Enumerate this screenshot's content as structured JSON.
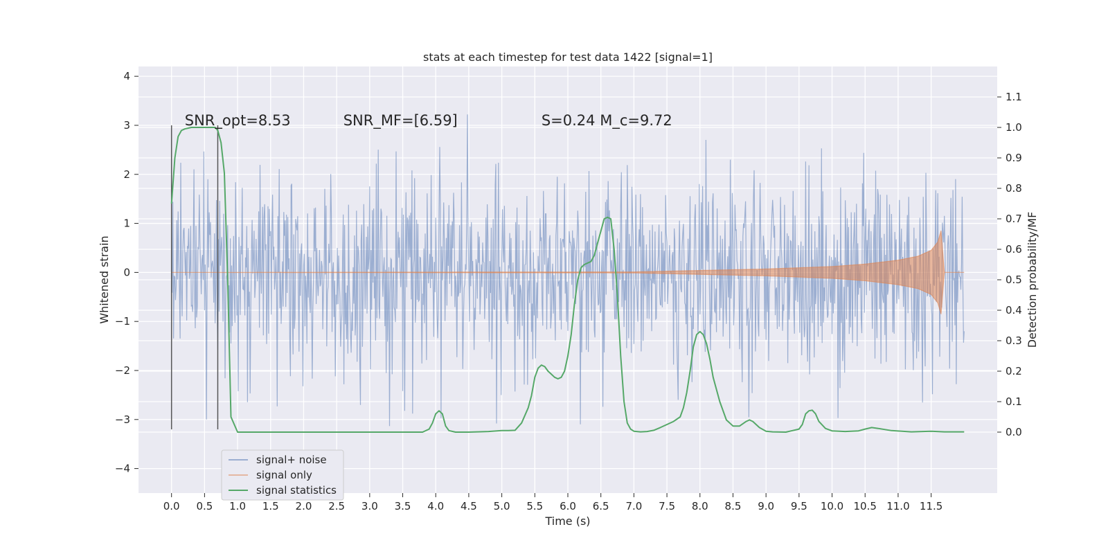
{
  "chart_data": {
    "type": "line",
    "title": "stats at each timestep for test data 1422 [signal=1]",
    "xlabel": "Time (s)",
    "ylabel_left": "Whitened strain",
    "ylabel_right": "Detection probability/MF",
    "xlim": [
      -0.5,
      12.5
    ],
    "ylim_left": [
      -4.5,
      4.2
    ],
    "ylim_right": [
      -0.2,
      1.2
    ],
    "xticks": [
      0.0,
      0.5,
      1.0,
      1.5,
      2.0,
      2.5,
      3.0,
      3.5,
      4.0,
      4.5,
      5.0,
      5.5,
      6.0,
      6.5,
      7.0,
      7.5,
      8.0,
      8.5,
      9.0,
      9.5,
      10.0,
      10.5,
      11.0,
      11.5
    ],
    "xtick_labels": [
      "0.0",
      "0.5",
      "1.0",
      "1.5",
      "2.0",
      "2.5",
      "3.0",
      "3.5",
      "4.0",
      "4.5",
      "5.0",
      "5.5",
      "6.0",
      "6.5",
      "7.0",
      "7.5",
      "8.0",
      "8.5",
      "9.0",
      "9.5",
      "10.0",
      "10.5",
      "11.0",
      "11.5"
    ],
    "yticks_left": [
      -4,
      -3,
      -2,
      -1,
      0,
      1,
      2,
      3,
      4
    ],
    "ytick_labels_left": [
      "−4",
      "−3",
      "−2",
      "−1",
      "0",
      "1",
      "2",
      "3",
      "4"
    ],
    "yticks_right": [
      0.0,
      0.1,
      0.2,
      0.3,
      0.4,
      0.5,
      0.6,
      0.7,
      0.8,
      0.9,
      1.0,
      1.1
    ],
    "ytick_labels_right": [
      "0.0",
      "0.1",
      "0.2",
      "0.3",
      "0.4",
      "0.5",
      "0.6",
      "0.7",
      "0.8",
      "0.9",
      "1.0",
      "1.1"
    ],
    "grid": true,
    "legend_position": "lower-left",
    "annotations": [
      {
        "text": "SNR_opt=8.53",
        "x": 0.2,
        "y_left": 3.0
      },
      {
        "text": "SNR_MF=[6.59]",
        "x": 2.6,
        "y_left": 3.0
      },
      {
        "text": "S=0.24   M_c=9.72",
        "x": 5.6,
        "y_left": 3.0
      }
    ],
    "vertical_lines": [
      {
        "x": 0.0,
        "y_left_range": [
          -3.2,
          3.0
        ]
      },
      {
        "x": 0.7,
        "y_left_range": [
          -3.2,
          3.0
        ]
      }
    ],
    "series": [
      {
        "name": "signal+ noise",
        "axis": "left",
        "color": "#4c72b0",
        "x_range": [
          0.0,
          12.0
        ],
        "sample_rate_hz": 100,
        "sigma": 1.0
      },
      {
        "name": "signal only",
        "axis": "left",
        "color": "#dd8452",
        "x_range": [
          0.0,
          12.0
        ],
        "envelope": {
          "x": [
            0.0,
            7.0,
            8.0,
            9.0,
            10.0,
            10.5,
            11.0,
            11.3,
            11.5,
            11.6,
            11.65,
            11.7,
            12.0
          ],
          "amp": [
            0.0,
            0.01,
            0.04,
            0.07,
            0.12,
            0.17,
            0.25,
            0.33,
            0.45,
            0.62,
            0.85,
            0.0,
            0.0
          ]
        }
      },
      {
        "name": "signal statistics",
        "axis": "right",
        "color": "#55a868",
        "x": [
          0.0,
          0.05,
          0.1,
          0.15,
          0.2,
          0.3,
          0.5,
          0.6,
          0.66,
          0.7,
          0.75,
          0.8,
          0.85,
          0.9,
          1.0,
          2.0,
          3.0,
          3.8,
          3.9,
          3.95,
          4.0,
          4.05,
          4.1,
          4.15,
          4.2,
          4.3,
          4.5,
          4.8,
          5.0,
          5.1,
          5.2,
          5.3,
          5.4,
          5.45,
          5.5,
          5.55,
          5.6,
          5.65,
          5.7,
          5.75,
          5.8,
          5.85,
          5.9,
          5.95,
          6.0,
          6.05,
          6.1,
          6.15,
          6.2,
          6.25,
          6.3,
          6.35,
          6.4,
          6.45,
          6.5,
          6.55,
          6.6,
          6.65,
          6.7,
          6.75,
          6.8,
          6.85,
          6.9,
          6.95,
          7.0,
          7.1,
          7.2,
          7.3,
          7.4,
          7.5,
          7.6,
          7.7,
          7.75,
          7.8,
          7.85,
          7.9,
          7.95,
          8.0,
          8.05,
          8.1,
          8.15,
          8.2,
          8.3,
          8.4,
          8.5,
          8.6,
          8.7,
          8.75,
          8.8,
          8.9,
          9.0,
          9.1,
          9.3,
          9.5,
          9.55,
          9.6,
          9.65,
          9.7,
          9.75,
          9.8,
          9.9,
          10.0,
          10.2,
          10.4,
          10.5,
          10.6,
          10.7,
          10.9,
          11.2,
          11.5,
          11.7,
          12.0
        ],
        "y": [
          0.75,
          0.9,
          0.97,
          0.99,
          0.995,
          1.0,
          1.0,
          1.0,
          1.0,
          0.99,
          0.95,
          0.85,
          0.5,
          0.05,
          0.0,
          0.0,
          0.0,
          0.0,
          0.01,
          0.03,
          0.06,
          0.07,
          0.06,
          0.02,
          0.005,
          0.0,
          0.0,
          0.002,
          0.005,
          0.005,
          0.006,
          0.03,
          0.08,
          0.12,
          0.18,
          0.21,
          0.22,
          0.215,
          0.2,
          0.19,
          0.18,
          0.175,
          0.18,
          0.2,
          0.25,
          0.32,
          0.42,
          0.5,
          0.54,
          0.55,
          0.555,
          0.56,
          0.58,
          0.62,
          0.66,
          0.7,
          0.705,
          0.7,
          0.6,
          0.45,
          0.25,
          0.1,
          0.03,
          0.01,
          0.003,
          0.001,
          0.002,
          0.006,
          0.015,
          0.025,
          0.035,
          0.05,
          0.08,
          0.13,
          0.2,
          0.28,
          0.32,
          0.33,
          0.32,
          0.29,
          0.24,
          0.18,
          0.1,
          0.04,
          0.02,
          0.02,
          0.035,
          0.04,
          0.035,
          0.015,
          0.003,
          0.001,
          0.0,
          0.01,
          0.025,
          0.06,
          0.07,
          0.072,
          0.06,
          0.035,
          0.012,
          0.004,
          0.002,
          0.004,
          0.01,
          0.015,
          0.012,
          0.005,
          0.001,
          0.003,
          0.001,
          0.001
        ]
      }
    ]
  }
}
